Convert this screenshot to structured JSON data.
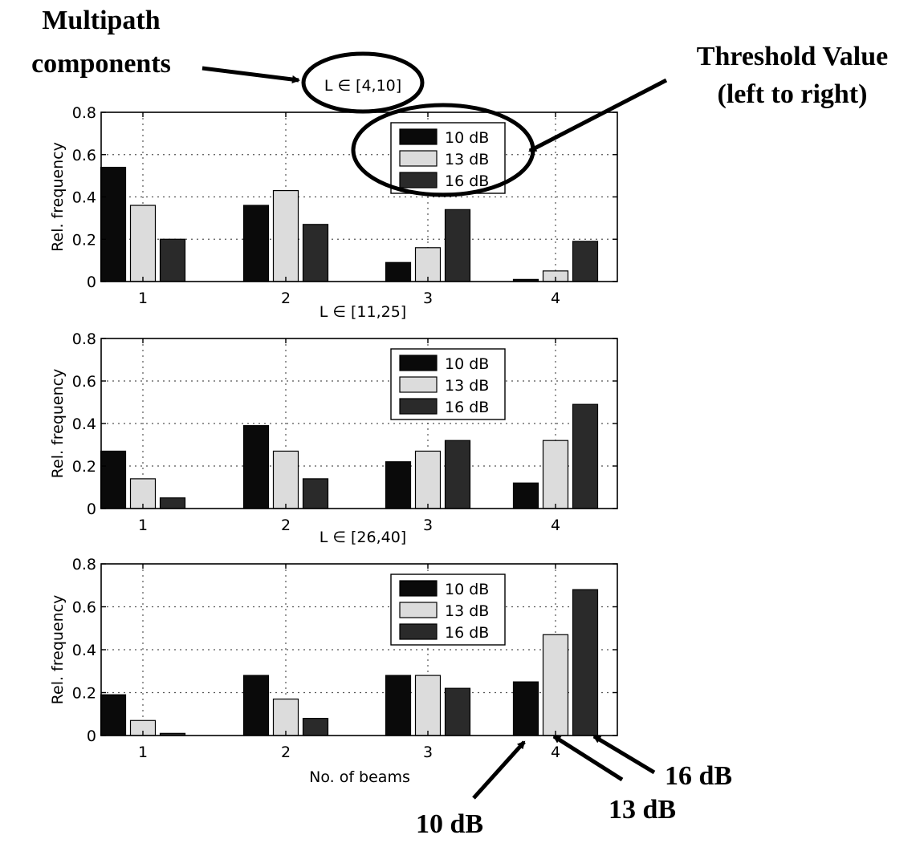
{
  "colors": {
    "series_10dB": "#0a0a0a",
    "series_13dB": "#dcdcdc",
    "series_16dB": "#2a2a2a",
    "axis": "#000000",
    "grid": "#555555"
  },
  "annotations": {
    "multipath": [
      "Multipath",
      "components"
    ],
    "threshold": [
      "Threshold Value",
      "(left to right)"
    ],
    "arrow_10": "10 dB",
    "arrow_13": "13 dB",
    "arrow_16": "16 dB"
  },
  "chart_data": [
    {
      "type": "bar",
      "title": "L ∈ [4,10]",
      "xlabel": "",
      "ylabel": "Rel. frequency",
      "categories": [
        "1",
        "2",
        "3",
        "4"
      ],
      "ylim": [
        0,
        0.8
      ],
      "yticks": [
        "0",
        "0.2",
        "0.4",
        "0.6",
        "0.8"
      ],
      "grid": true,
      "legend": "top-right",
      "series": [
        {
          "name": "10 dB",
          "values": [
            0.54,
            0.36,
            0.09,
            0.01
          ]
        },
        {
          "name": "13 dB",
          "values": [
            0.36,
            0.43,
            0.16,
            0.05
          ]
        },
        {
          "name": "16 dB",
          "values": [
            0.2,
            0.27,
            0.34,
            0.19
          ]
        }
      ]
    },
    {
      "type": "bar",
      "title": "L ∈ [11,25]",
      "xlabel": "",
      "ylabel": "Rel. frequency",
      "categories": [
        "1",
        "2",
        "3",
        "4"
      ],
      "ylim": [
        0,
        0.8
      ],
      "yticks": [
        "0",
        "0.2",
        "0.4",
        "0.6",
        "0.8"
      ],
      "grid": true,
      "legend": "top-right",
      "series": [
        {
          "name": "10 dB",
          "values": [
            0.27,
            0.39,
            0.22,
            0.12
          ]
        },
        {
          "name": "13 dB",
          "values": [
            0.14,
            0.27,
            0.27,
            0.32
          ]
        },
        {
          "name": "16 dB",
          "values": [
            0.05,
            0.14,
            0.32,
            0.49
          ]
        }
      ]
    },
    {
      "type": "bar",
      "title": "L ∈ [26,40]",
      "xlabel": "No. of beams",
      "ylabel": "Rel. frequency",
      "categories": [
        "1",
        "2",
        "3",
        "4"
      ],
      "ylim": [
        0,
        0.8
      ],
      "yticks": [
        "0",
        "0.2",
        "0.4",
        "0.6",
        "0.8"
      ],
      "grid": true,
      "legend": "top-right",
      "series": [
        {
          "name": "10 dB",
          "values": [
            0.19,
            0.28,
            0.28,
            0.25
          ]
        },
        {
          "name": "13 dB",
          "values": [
            0.07,
            0.17,
            0.28,
            0.47
          ]
        },
        {
          "name": "16 dB",
          "values": [
            0.01,
            0.08,
            0.22,
            0.68
          ]
        }
      ]
    }
  ]
}
